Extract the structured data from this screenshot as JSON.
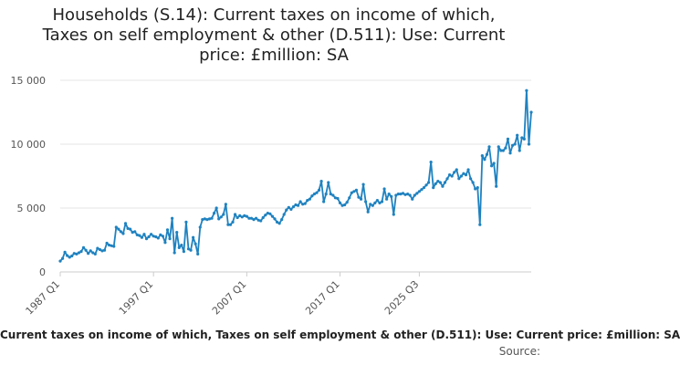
{
  "title_lines": [
    "Households (S.14): Current taxes on income of which,",
    "Taxes on self employment & other (D.511): Use: Current",
    "price: £million: SA"
  ],
  "legend_text": "Current taxes on income of which, Taxes on self employment & other (D.511): Use: Current price: £million: SA",
  "source_label": "Source:",
  "colors": {
    "line": "#1f82c0",
    "grid": "#e6e6e6",
    "axis": "#cccccc"
  },
  "chart_data": {
    "type": "line",
    "title": "Households (S.14): Current taxes on income of which, Taxes on self employment & other (D.511): Use: Current price: £million: SA",
    "xlabel": "",
    "ylabel": "",
    "ylim": [
      0,
      15000
    ],
    "yticks": [
      0,
      5000,
      10000,
      15000
    ],
    "ytick_labels": [
      "0",
      "5 000",
      "10 000",
      "15 000"
    ],
    "xticks": [
      "1987 Q1",
      "1997 Q1",
      "2007 Q1",
      "2017 Q1",
      "2025 Q3"
    ],
    "grid": "horizontal",
    "series": [
      {
        "name": "Current taxes on income of which, Taxes on self employment & other (D.511): Use: Current price: £million: SA",
        "x_start": "1987 Q1",
        "frequency": "quarterly",
        "values": [
          850,
          1050,
          1550,
          1280,
          1150,
          1250,
          1450,
          1400,
          1500,
          1600,
          1900,
          1700,
          1450,
          1650,
          1500,
          1400,
          1850,
          1750,
          1650,
          1700,
          2250,
          2100,
          2050,
          2000,
          3500,
          3350,
          3150,
          3000,
          3800,
          3400,
          3350,
          3100,
          3150,
          2900,
          2850,
          2700,
          2950,
          2600,
          2750,
          2950,
          2800,
          2750,
          2650,
          2900,
          2800,
          2300,
          3300,
          2600,
          4200,
          1500,
          3100,
          1900,
          2100,
          1600,
          3900,
          1800,
          1700,
          2700,
          2200,
          1400,
          3500,
          4100,
          4150,
          4100,
          4150,
          4200,
          4600,
          5000,
          4150,
          4300,
          4500,
          5300,
          3700,
          3700,
          3900,
          4500,
          4250,
          4400,
          4300,
          4400,
          4350,
          4200,
          4200,
          4100,
          4200,
          4050,
          4000,
          4250,
          4450,
          4600,
          4550,
          4350,
          4150,
          3900,
          3800,
          4100,
          4500,
          4850,
          5050,
          4900,
          5100,
          5250,
          5200,
          5500,
          5300,
          5350,
          5600,
          5700,
          5950,
          6100,
          6200,
          6400,
          7100,
          5500,
          6100,
          7000,
          6100,
          6000,
          5800,
          5750,
          5400,
          5200,
          5250,
          5450,
          5800,
          6200,
          6300,
          6400,
          5850,
          5700,
          6850,
          5500,
          4700,
          5300,
          5200,
          5400,
          5600,
          5400,
          5500,
          6500,
          5700,
          6100,
          5900,
          4500,
          6000,
          6100,
          6100,
          6150,
          6050,
          6100,
          6000,
          5700,
          6000,
          6150,
          6300,
          6450,
          6600,
          6800,
          7000,
          8600,
          6600,
          6900,
          7100,
          7000,
          6700,
          7000,
          7300,
          7600,
          7500,
          7800,
          8000,
          7300,
          7500,
          7700,
          7600,
          8000,
          7300,
          7000,
          6500,
          6600,
          3700,
          9100,
          8800,
          9200,
          9800,
          8300,
          8500,
          6700,
          9800,
          9500,
          9500,
          9700,
          10400,
          9300,
          9900,
          10000,
          10700,
          9500,
          10500,
          10400,
          14200,
          10000,
          12500
        ]
      }
    ]
  }
}
